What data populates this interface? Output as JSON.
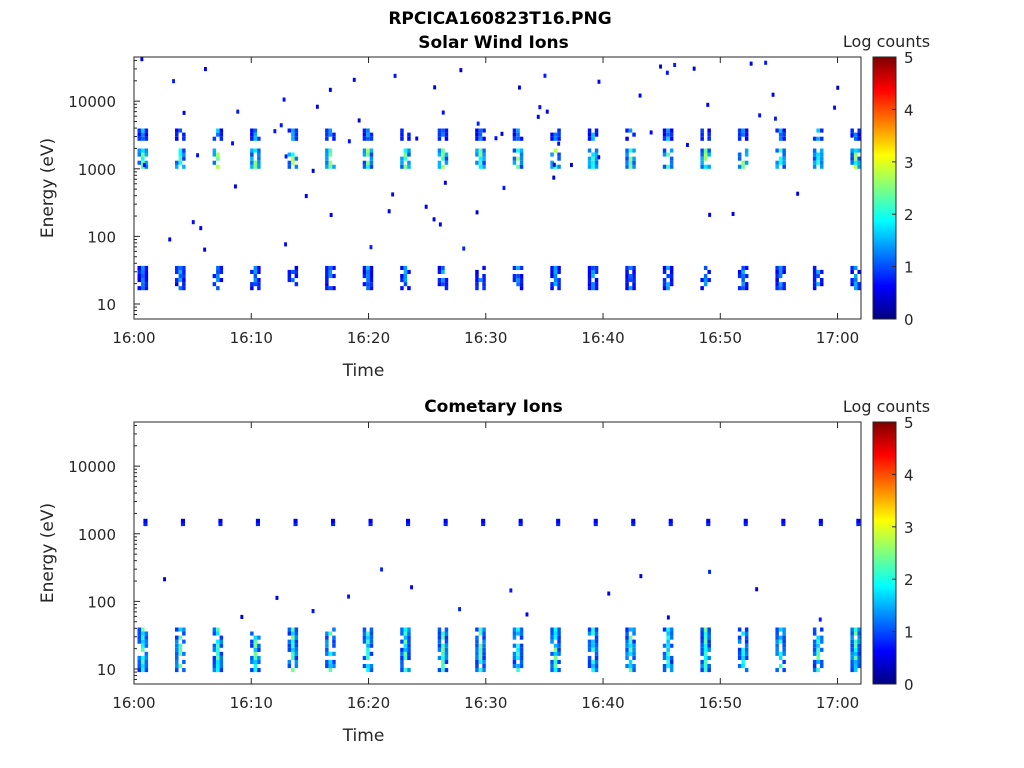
{
  "figure_title": "RPCICA160823T16.PNG",
  "colors": {
    "colormap": [
      "#00007f",
      "#0000ff",
      "#007fff",
      "#00ffff",
      "#7fff7f",
      "#ffff00",
      "#ff7f00",
      "#ff0000",
      "#7f0000"
    ],
    "axis": "#262626",
    "background": "#ffffff"
  },
  "chart_data": [
    {
      "type": "heatmap",
      "title": "Solar Wind Ions",
      "xlabel": "Time",
      "ylabel": "Energy (eV)",
      "xlim": [
        "16:00",
        "17:02"
      ],
      "ylim": [
        6,
        45000
      ],
      "y_scale": "log",
      "x_ticks": [
        "16:00",
        "16:10",
        "16:20",
        "16:30",
        "16:40",
        "16:50",
        "17:00"
      ],
      "y_ticks": [
        "10",
        "100",
        "1000",
        "10000"
      ],
      "colorbar": {
        "label": "Log counts",
        "range": [
          0,
          5
        ],
        "ticks": [
          "0",
          "1",
          "2",
          "3",
          "4",
          "5"
        ]
      },
      "cycle_minutes": 3.2,
      "cycle_start_minute": 0.3,
      "features": [
        {
          "name": "solar-wind-peak",
          "energy_eV": [
            1000,
            1900
          ],
          "log_counts_max": 2.8
        },
        {
          "name": "upper-band",
          "energy_eV": [
            2600,
            3800
          ],
          "log_counts_max": 1.7
        },
        {
          "name": "low-energy-band",
          "energy_eV": [
            16,
            35
          ],
          "log_counts_max": 1.6
        },
        {
          "name": "sparse-background",
          "energy_eV": [
            50,
            40000
          ],
          "log_counts_max": 0.8
        }
      ]
    },
    {
      "type": "heatmap",
      "title": "Cometary Ions",
      "xlabel": "Time",
      "ylabel": "Energy (eV)",
      "xlim": [
        "16:00",
        "17:02"
      ],
      "ylim": [
        6,
        45000
      ],
      "y_scale": "log",
      "x_ticks": [
        "16:00",
        "16:10",
        "16:20",
        "16:30",
        "16:40",
        "16:50",
        "17:00"
      ],
      "y_ticks": [
        "10",
        "100",
        "1000",
        "10000"
      ],
      "colorbar": {
        "label": "Log counts",
        "range": [
          0,
          5
        ],
        "ticks": [
          "0",
          "1",
          "2",
          "3",
          "4",
          "5"
        ]
      },
      "cycle_minutes": 3.2,
      "cycle_start_minute": 0.3,
      "features": [
        {
          "name": "cometary-low-energy",
          "energy_eV": [
            9,
            40
          ],
          "log_counts_max": 2.5
        },
        {
          "name": "kev-dots",
          "energy_eV": [
            1200,
            1600
          ],
          "log_counts_max": 0.9
        },
        {
          "name": "sparse-background",
          "energy_eV": [
            50,
            300
          ],
          "log_counts_max": 0.4
        }
      ]
    }
  ]
}
